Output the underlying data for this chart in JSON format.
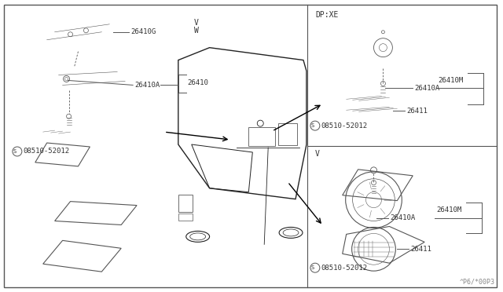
{
  "bg_color": "#ffffff",
  "border_color": "#000000",
  "line_color": "#555555",
  "text_color": "#333333",
  "watermark": "^P6/*00P3",
  "left_panel_label_V": "V",
  "left_panel_label_W": "W",
  "right_top_label": "DP:XE",
  "right_bottom_label": "V",
  "watermark_color": "#888888"
}
